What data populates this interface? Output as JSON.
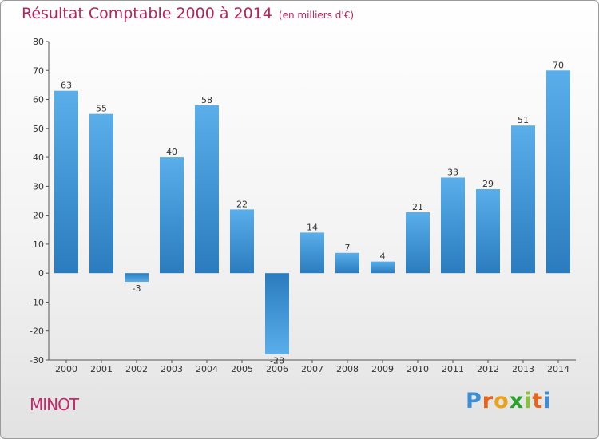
{
  "header": {
    "title": "Résultat Comptable 2000 à 2014",
    "subtitle": "(en milliers d'€)"
  },
  "footer": {
    "town": "MINOT",
    "logo_letters": [
      "P",
      "r",
      "o",
      "x",
      "i",
      "t",
      "i"
    ]
  },
  "colors": {
    "title": "#b5245a",
    "bar_light": "#5aaeea",
    "bar_dark": "#2a7cbe",
    "logo": [
      "#3a8fd6",
      "#e8631c",
      "#e8a21c",
      "#2aa12a",
      "#8bc23a",
      "#e8631c",
      "#3a8fd6"
    ]
  },
  "chart_data": {
    "type": "bar",
    "title": "Résultat Comptable 2000 à 2014",
    "ylabel": "en milliers d'€",
    "xlabel": "",
    "ylim": [
      -30,
      80
    ],
    "yticks": [
      80,
      70,
      60,
      50,
      40,
      30,
      20,
      10,
      0,
      -10,
      -20,
      -30
    ],
    "categories": [
      "2000",
      "2001",
      "2002",
      "2003",
      "2004",
      "2005",
      "2006",
      "2007",
      "2008",
      "2009",
      "2010",
      "2011",
      "2012",
      "2013",
      "2014"
    ],
    "values": [
      63,
      55,
      -3,
      40,
      58,
      22,
      -28,
      14,
      7,
      4,
      21,
      33,
      29,
      51,
      70
    ],
    "grid": false,
    "legend": "none"
  }
}
